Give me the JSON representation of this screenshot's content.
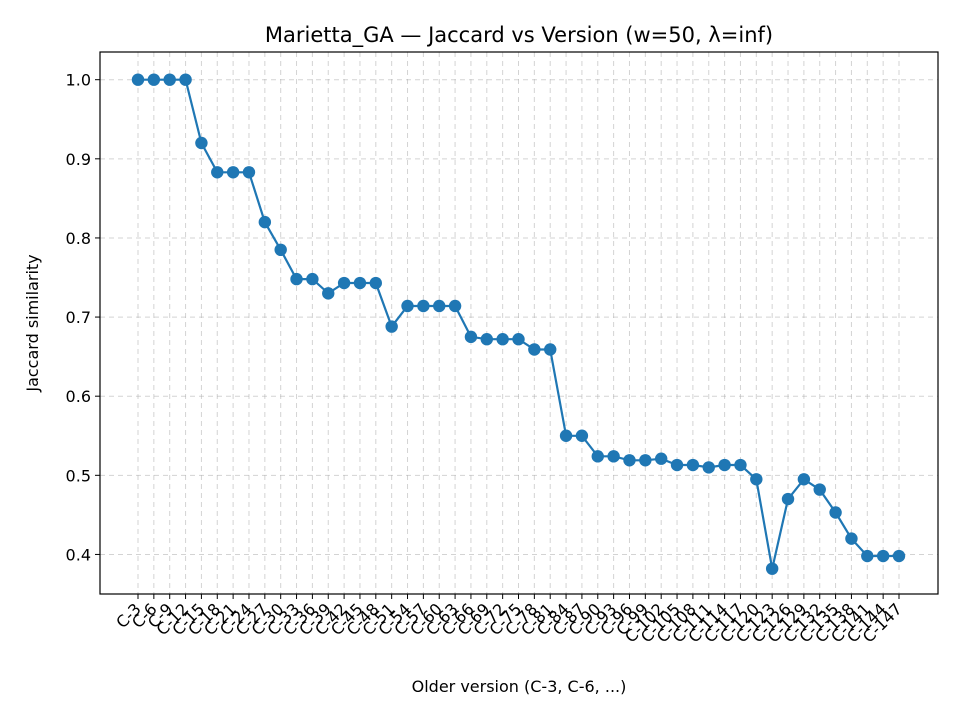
{
  "chart_data": {
    "type": "line",
    "title": "Marietta_GA — Jaccard vs Version (w=50, λ=inf)",
    "xlabel": "Older version (C-3, C-6, ...)",
    "ylabel": "Jaccard similarity",
    "ylim": [
      0.35,
      1.035
    ],
    "yticks": [
      0.4,
      0.5,
      0.6,
      0.7,
      0.8,
      0.9,
      1.0
    ],
    "ytick_labels": [
      "0.4",
      "0.5",
      "0.6",
      "0.7",
      "0.8",
      "0.9",
      "1.0"
    ],
    "grid": true,
    "categories": [
      "C-3",
      "C-6",
      "C-9",
      "C-12",
      "C-15",
      "C-18",
      "C-21",
      "C-24",
      "C-27",
      "C-30",
      "C-33",
      "C-36",
      "C-39",
      "C-42",
      "C-45",
      "C-48",
      "C-51",
      "C-54",
      "C-57",
      "C-60",
      "C-63",
      "C-66",
      "C-69",
      "C-72",
      "C-75",
      "C-78",
      "C-81",
      "C-84",
      "C-87",
      "C-90",
      "C-93",
      "C-96",
      "C-99",
      "C-102",
      "C-105",
      "C-108",
      "C-111",
      "C-114",
      "C-117",
      "C-120",
      "C-123",
      "C-126",
      "C-129",
      "C-132",
      "C-135",
      "C-138",
      "C-141",
      "C-144",
      "C-147"
    ],
    "series": [
      {
        "color": "#1f77b4",
        "values": [
          1.0,
          1.0,
          1.0,
          1.0,
          0.92,
          0.883,
          0.883,
          0.883,
          0.82,
          0.785,
          0.748,
          0.748,
          0.73,
          0.743,
          0.743,
          0.743,
          0.688,
          0.714,
          0.714,
          0.714,
          0.714,
          0.675,
          0.672,
          0.672,
          0.672,
          0.659,
          0.659,
          0.55,
          0.55,
          0.524,
          0.524,
          0.519,
          0.519,
          0.521,
          0.513,
          0.513,
          0.51,
          0.513,
          0.513,
          0.495,
          0.382,
          0.47,
          0.495,
          0.482,
          0.453,
          0.42,
          0.398,
          0.398,
          0.398
        ]
      }
    ]
  }
}
